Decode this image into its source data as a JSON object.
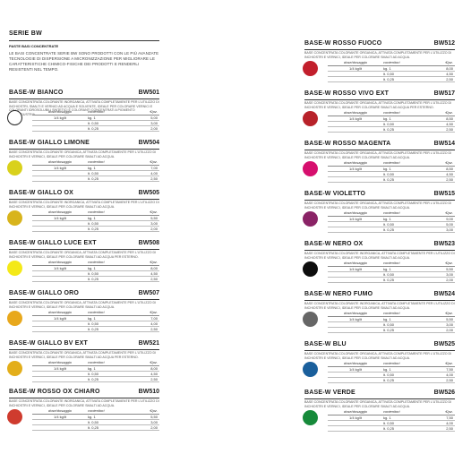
{
  "header": {
    "title": "SERIE BW",
    "subtitle": "PASTE BASI CONCENTRATE",
    "body": "LE BASI CONCENTRATE SERIE BW SONO PRODOTTI CON LE PIÙ AVANZATE TECNOLOGIE DI DISPERSIONE A MICRONIZZAZIONE PER MIGLIORARE LE CARATTERISTICHE CHIMICO-FISICHE DEI PRODOTTI E RENDERLI RESISTENTI NEL TEMPO."
  },
  "table_headers": {
    "dose": "dose/dosaggio",
    "container": "contenitori",
    "pieces": "€/pz."
  },
  "left_cards": [
    {
      "name": "BASE-W BIANCO",
      "code": "BW501",
      "color": "#ffffff",
      "border": "#222222",
      "desc": "BASE CONCENTRATA COLORANTE INORGANICA, ATTIVATA COMPLETAMENTE PER L'UTILIZZO DI INCHIOSTRI, SMALTI E VERNICI AD ACQUA E SOLVENTE, IDEALE PER COLORARE VERNICI E COLORANTI IDROSOLUBILI SINTETICI E COLORANTI CONCENTRATI A PIGMENTO NELL'INDUSTRIA.",
      "dose": "1/4 kg/lt",
      "rows": [
        [
          "kg. 1",
          "5,00"
        ],
        [
          "lt. 0,50",
          "3,00"
        ],
        [
          "lt. 0,25",
          "2,00"
        ]
      ]
    },
    {
      "name": "BASE-W GIALLO LIMONE",
      "code": "BW504",
      "color": "#d9d11c",
      "border": "",
      "desc": "BASE CONCENTRATA COLORANTE ORGANICA, ATTIVATA COMPLETAMENTE PER L'UTILIZZO DI INCHIOSTRI E VERNICI, IDEALE PER COLORARE SMALTI AD ACQUA.",
      "dose": "1/4 kg/lt",
      "rows": [
        [
          "kg. 1",
          "7,00"
        ],
        [
          "lt. 0,50",
          "4,00"
        ],
        [
          "lt. 0,25",
          "2,50"
        ]
      ]
    },
    {
      "name": "BASE-W GIALLO OX",
      "code": "BW505",
      "color": "#d8b41c",
      "border": "",
      "desc": "BASE CONCENTRATA COLORANTE INORGANICA, ATTIVATA COMPLETAMENTE PER L'UTILIZZO DI INCHIOSTRI E VERNICI, IDEALE PER COLORARE SMALTI AD ACQUA.",
      "dose": "1/4 kg/lt",
      "rows": [
        [
          "kg. 1",
          "5,50"
        ],
        [
          "lt. 0,50",
          "3,00"
        ],
        [
          "lt. 0,25",
          "2,00"
        ]
      ]
    },
    {
      "name": "BASE-W GIALLO LUCE EXT",
      "code": "BW508",
      "color": "#f4e918",
      "border": "",
      "desc": "BASE CONCENTRATA COLORANTE ORGANICA, ATTIVATA COMPLETAMENTE PER L'UTILIZZO DI INCHIOSTRI E VERNICI, IDEALE PER COLORARE SMALTI AD ACQUA PER ESTERNO.",
      "dose": "1/4 kg/lt",
      "rows": [
        [
          "kg. 1",
          "8,00"
        ],
        [
          "lt. 0,50",
          "4,50"
        ],
        [
          "lt. 0,25",
          "2,50"
        ]
      ]
    },
    {
      "name": "BASE-W GIALLO ORO",
      "code": "BW507",
      "color": "#e8a81c",
      "border": "",
      "desc": "BASE CONCENTRATA COLORANTE ORGANICA, ATTIVATA COMPLETAMENTE PER L'UTILIZZO DI INCHIOSTRI E VERNICI, IDEALE PER COLORARE SMALTI AD ACQUA.",
      "dose": "1/4 kg/lt",
      "rows": [
        [
          "kg. 1",
          "7,00"
        ],
        [
          "lt. 0,50",
          "4,00"
        ],
        [
          "lt. 0,25",
          "2,50"
        ]
      ]
    },
    {
      "name": "BASE-W GIALLO BV EXT",
      "code": "BW521",
      "color": "#e3ae1a",
      "border": "",
      "desc": "BASE CONCENTRATA COLORANTE ORGANICA, ATTIVATA COMPLETAMENTE PER L'UTILIZZO DI INCHIOSTRI E VERNICI, IDEALE PER COLORARE SMALTI AD ACQUA PER ESTERNO.",
      "dose": "1/4 kg/lt",
      "rows": [
        [
          "kg. 1",
          "8,00"
        ],
        [
          "lt. 0,50",
          "4,50"
        ],
        [
          "lt. 0,25",
          "2,50"
        ]
      ]
    },
    {
      "name": "BASE-W ROSSO OX CHIARO",
      "code": "BW510",
      "color": "#cf3b2e",
      "border": "",
      "desc": "BASE CONCENTRATA COLORANTE INORGANICA, ATTIVATA COMPLETAMENTE PER L'UTILIZZO DI INCHIOSTRI E VERNICI, IDEALE PER COLORARE SMALTI AD ACQUA.",
      "dose": "1/4 kg/lt",
      "rows": [
        [
          "kg. 1",
          "5,50"
        ],
        [
          "lt. 0,50",
          "3,00"
        ],
        [
          "lt. 0,25",
          "2,00"
        ]
      ]
    }
  ],
  "right_cards": [
    {
      "name": "BASE-W ROSSO FUOCO",
      "code": "BW512",
      "color": "#c21f2c",
      "border": "",
      "desc": "BASE CONCENTRATA COLORANTE ORGANICA, ATTIVATA COMPLETAMENTE PER L'UTILIZZO DI INCHIOSTRI E VERNICI, IDEALE PER COLORARE SMALTI AD ACQUA.",
      "dose": "1/4 kg/lt",
      "rows": [
        [
          "kg. 1",
          "8,00"
        ],
        [
          "lt. 0,50",
          "4,50"
        ],
        [
          "lt. 0,25",
          "2,50"
        ]
      ]
    },
    {
      "name": "BASE-W ROSSO VIVO EXT",
      "code": "BW517",
      "color": "#b8222a",
      "border": "",
      "desc": "BASE CONCENTRATA COLORANTE ORGANICA, ATTIVATA COMPLETAMENTE PER L'UTILIZZO DI INCHIOSTRI E VERNICI, IDEALE PER COLORARE SMALTI AD ACQUA PER ESTERNO.",
      "dose": "1/4 kg/lt",
      "rows": [
        [
          "kg. 1",
          "8,50"
        ],
        [
          "lt. 0,50",
          "4,50"
        ],
        [
          "lt. 0,25",
          "2,50"
        ]
      ]
    },
    {
      "name": "BASE-W ROSSO MAGENTA",
      "code": "BW514",
      "color": "#d60f6e",
      "border": "",
      "desc": "BASE CONCENTRATA COLORANTE ORGANICA, ATTIVATA COMPLETAMENTE PER L'UTILIZZO DI INCHIOSTRI E VERNICI, IDEALE PER COLORARE SMALTI AD ACQUA.",
      "dose": "1/4 kg/lt",
      "rows": [
        [
          "kg. 1",
          "8,50"
        ],
        [
          "lt. 0,50",
          "4,50"
        ],
        [
          "lt. 0,25",
          "2,50"
        ]
      ]
    },
    {
      "name": "BASE-W VIOLETTO",
      "code": "BW515",
      "color": "#8a2366",
      "border": "",
      "desc": "BASE CONCENTRATA COLORANTE ORGANICA, ATTIVATA COMPLETAMENTE PER L'UTILIZZO DI INCHIOSTRI E VERNICI, IDEALE PER COLORARE SMALTI AD ACQUA.",
      "dose": "1/4 kg/lt",
      "rows": [
        [
          "kg. 1",
          "9,00"
        ],
        [
          "lt. 0,50",
          "5,00"
        ],
        [
          "lt. 0,25",
          "3,00"
        ]
      ]
    },
    {
      "name": "BASE-W NERO OX",
      "code": "BW523",
      "color": "#0d0d0d",
      "border": "",
      "desc": "BASE CONCENTRATA COLORANTE INORGANICA, ATTIVATA COMPLETAMENTE PER L'UTILIZZO DI INCHIOSTRI E VERNICI, IDEALE PER COLORARE SMALTI AD ACQUA.",
      "dose": "1/4 kg/lt",
      "rows": [
        [
          "kg. 1",
          "5,50"
        ],
        [
          "lt. 0,50",
          "3,00"
        ],
        [
          "lt. 0,25",
          "2,00"
        ]
      ]
    },
    {
      "name": "BASE-W NERO FUMO",
      "code": "BW524",
      "color": "#666666",
      "border": "",
      "desc": "BASE CONCENTRATA COLORANTE INORGANICA, ATTIVATA COMPLETAMENTE PER L'UTILIZZO DI INCHIOSTRI E VERNICI, IDEALE PER COLORARE SMALTI AD ACQUA.",
      "dose": "1/4 kg/lt",
      "rows": [
        [
          "kg. 1",
          "5,50"
        ],
        [
          "lt. 0,50",
          "3,00"
        ],
        [
          "lt. 0,25",
          "2,00"
        ]
      ]
    },
    {
      "name": "BASE-W BLU",
      "code": "BW525",
      "color": "#1a5f9c",
      "border": "",
      "desc": "BASE CONCENTRATA COLORANTE ORGANICA, ATTIVATA COMPLETAMENTE PER L'UTILIZZO DI INCHIOSTRI E VERNICI, IDEALE PER COLORARE SMALTI AD ACQUA.",
      "dose": "1/4 kg/lt",
      "rows": [
        [
          "kg. 1",
          "7,50"
        ],
        [
          "lt. 0,50",
          "4,00"
        ],
        [
          "lt. 0,25",
          "2,50"
        ]
      ]
    },
    {
      "name": "BASE-W VERDE",
      "code": "BW526",
      "color": "#168a3a",
      "border": "",
      "desc": "BASE CONCENTRATA COLORANTE ORGANICA, ATTIVATA COMPLETAMENTE PER L'UTILIZZO DI INCHIOSTRI E VERNICI, IDEALE PER COLORARE SMALTI AD ACQUA.",
      "dose": "1/4 kg/lt",
      "rows": [
        [
          "kg. 1",
          "7,50"
        ],
        [
          "lt. 0,50",
          "4,00"
        ],
        [
          "lt. 0,25",
          "2,50"
        ]
      ]
    }
  ]
}
